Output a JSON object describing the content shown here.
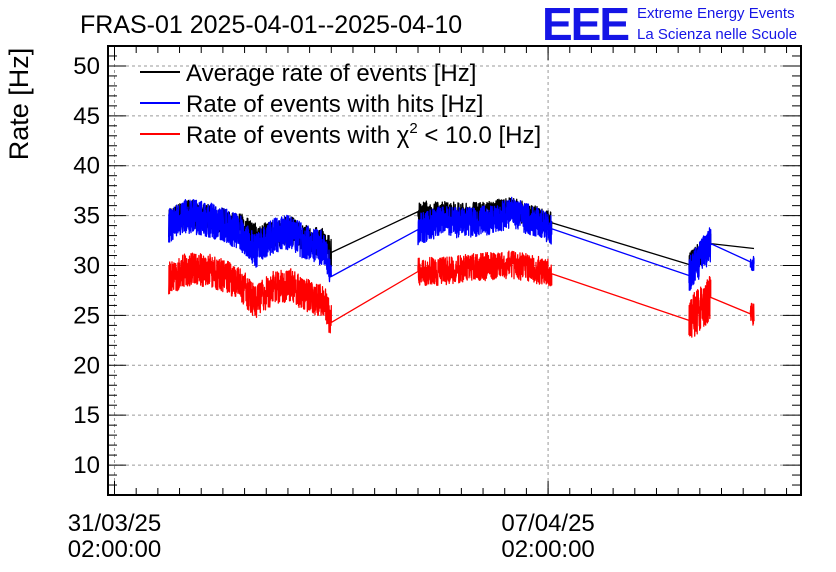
{
  "chart_data": {
    "type": "line",
    "title": "FRAS-01 2025-04-01--2025-04-10",
    "ylabel": "Rate [Hz]",
    "xlabel": "",
    "ylim": [
      7,
      52
    ],
    "yticks": [
      10,
      15,
      20,
      25,
      30,
      35,
      40,
      45,
      50
    ],
    "x_unit": "days since 31/03/25 02:00:00",
    "xlim": [
      -0.09,
      9.5
    ],
    "xticks": [
      {
        "x": 0,
        "date": "31/03/25",
        "time": "02:00:00"
      },
      {
        "x": 6,
        "date": "07/04/25",
        "time": "02:00:00"
      }
    ],
    "grid": true,
    "legend_position": "top-left",
    "series": [
      {
        "name": "Average rate of events [Hz]",
        "color": "#000000",
        "points": [
          [
            0.75,
            34.2
          ],
          [
            1.0,
            35.3
          ],
          [
            1.3,
            34.8
          ],
          [
            1.55,
            34.2
          ],
          [
            1.75,
            33.8
          ],
          [
            2.0,
            32.7
          ],
          [
            2.2,
            33.2
          ],
          [
            2.45,
            33.6
          ],
          [
            2.6,
            32.7
          ],
          [
            2.9,
            32.3
          ],
          [
            3.0,
            31.3
          ],
          [
            4.2,
            35.4
          ],
          [
            4.5,
            35.3
          ],
          [
            5.0,
            35.2
          ],
          [
            5.5,
            35.7
          ],
          [
            6.0,
            34.4
          ],
          [
            7.95,
            30.1
          ],
          [
            8.25,
            32.2
          ],
          [
            8.85,
            31.7
          ]
        ],
        "noise": [
          [
            0.75,
            3.0,
            2.0
          ],
          [
            3.0,
            4.2,
            0.0
          ],
          [
            4.2,
            6.05,
            1.6
          ],
          [
            6.05,
            7.95,
            0.0
          ],
          [
            7.95,
            8.25,
            1.8
          ],
          [
            8.25,
            8.85,
            0.0
          ]
        ]
      },
      {
        "name": "Rate of events with hits [Hz]",
        "color": "#0000ff",
        "points": [
          [
            0.75,
            34.0
          ],
          [
            1.0,
            35.0
          ],
          [
            1.3,
            34.6
          ],
          [
            1.55,
            34.0
          ],
          [
            1.75,
            33.2
          ],
          [
            1.95,
            31.5
          ],
          [
            2.2,
            33.0
          ],
          [
            2.45,
            33.4
          ],
          [
            2.6,
            32.4
          ],
          [
            2.9,
            31.7
          ],
          [
            3.0,
            28.9
          ],
          [
            4.2,
            33.6
          ],
          [
            4.5,
            34.4
          ],
          [
            5.0,
            34.2
          ],
          [
            5.5,
            35.3
          ],
          [
            6.0,
            33.8
          ],
          [
            7.95,
            29.0
          ],
          [
            8.25,
            32.2
          ],
          [
            8.85,
            30.2
          ]
        ],
        "noise": [
          [
            0.75,
            3.0,
            2.5
          ],
          [
            3.0,
            4.2,
            0.0
          ],
          [
            4.2,
            6.05,
            2.2
          ],
          [
            6.05,
            7.95,
            0.0
          ],
          [
            7.95,
            8.25,
            2.6
          ],
          [
            8.25,
            8.8,
            0.0
          ],
          [
            8.8,
            8.85,
            1.2
          ]
        ]
      },
      {
        "name": "Rate of events with χ² < 10.0 [Hz]",
        "color": "#ff0000",
        "points": [
          [
            0.75,
            28.7
          ],
          [
            1.0,
            29.6
          ],
          [
            1.3,
            29.5
          ],
          [
            1.55,
            28.9
          ],
          [
            1.75,
            28.1
          ],
          [
            1.95,
            26.3
          ],
          [
            2.2,
            27.8
          ],
          [
            2.45,
            28.1
          ],
          [
            2.6,
            27.1
          ],
          [
            2.9,
            26.4
          ],
          [
            3.0,
            24.3
          ],
          [
            4.2,
            29.4
          ],
          [
            4.5,
            29.4
          ],
          [
            5.0,
            29.8
          ],
          [
            5.5,
            30.1
          ],
          [
            6.0,
            29.3
          ],
          [
            7.95,
            24.5
          ],
          [
            8.25,
            26.8
          ],
          [
            8.85,
            25.0
          ]
        ],
        "noise": [
          [
            0.75,
            3.0,
            2.4
          ],
          [
            3.0,
            4.2,
            0.0
          ],
          [
            4.2,
            6.05,
            2.0
          ],
          [
            6.05,
            7.95,
            0.0
          ],
          [
            7.95,
            8.25,
            3.2
          ],
          [
            8.25,
            8.8,
            0.0
          ],
          [
            8.8,
            8.85,
            1.6
          ]
        ]
      }
    ]
  },
  "logo": {
    "mark": "EEE",
    "line1": "Extreme Energy Events",
    "line2": "La Scienza nelle Scuole"
  },
  "legend": {
    "items": [
      {
        "text": "Average rate of events [Hz]"
      },
      {
        "text_before": "Rate of events with hits [Hz]"
      },
      {
        "text_before": "Rate of events with ",
        "chi": "χ",
        "sup": "2",
        "text_after": " < 10.0 [Hz]"
      }
    ]
  }
}
